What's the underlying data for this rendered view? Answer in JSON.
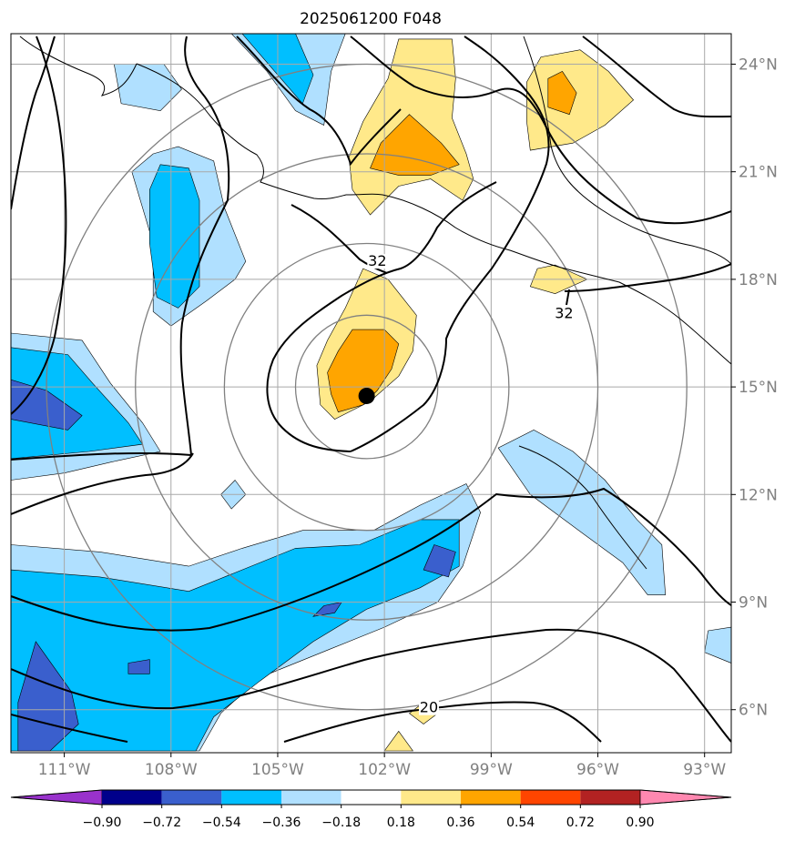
{
  "chart_data": {
    "type": "heatmap",
    "title": "2025061200 F048",
    "projection": "map",
    "xlim": [
      -112.5,
      -92.25
    ],
    "ylim": [
      4.8,
      24.85
    ],
    "x_ticks": [
      {
        "value": -111,
        "label": "111°W"
      },
      {
        "value": -108,
        "label": "108°W"
      },
      {
        "value": -105,
        "label": "105°W"
      },
      {
        "value": -102,
        "label": "102°W"
      },
      {
        "value": -99,
        "label": "99°W"
      },
      {
        "value": -96,
        "label": "96°W"
      },
      {
        "value": -93,
        "label": "93°W"
      }
    ],
    "y_ticks": [
      {
        "value": 6,
        "label": "6°N"
      },
      {
        "value": 9,
        "label": "9°N"
      },
      {
        "value": 12,
        "label": "12°N"
      },
      {
        "value": 15,
        "label": "15°N"
      },
      {
        "value": 18,
        "label": "18°N"
      },
      {
        "value": 21,
        "label": "21°N"
      },
      {
        "value": 24,
        "label": "24°N"
      }
    ],
    "grid": true,
    "colorbar": {
      "placement": "bottom",
      "levels": [
        "−0.90",
        "−0.72",
        "−0.54",
        "−0.36",
        "−0.18",
        "0.18",
        "0.36",
        "0.54",
        "0.72",
        "0.90"
      ],
      "colors": [
        "#9932cc",
        "#00008b",
        "#3a5fcd",
        "#00bfff",
        "#b0e0ff",
        "#ffffff",
        "#ffe98a",
        "#ffa500",
        "#ff4500",
        "#b22222",
        "#ff88b0"
      ]
    },
    "center_marker": {
      "lon": -102.5,
      "lat": 14.75
    },
    "contour_labels": [
      {
        "text": "32",
        "lon": -102.2,
        "lat": 18.4
      },
      {
        "text": "32",
        "lon": -96.95,
        "lat": 16.95
      },
      {
        "text": "20",
        "lon": -100.75,
        "lat": 5.95
      }
    ],
    "range_rings": {
      "center_lon": -102.5,
      "center_lat": 15.0,
      "radii_deg": [
        2,
        4,
        6.5,
        9
      ]
    },
    "filled_regions": [
      {
        "level": 0.36,
        "color": "#ffe98a",
        "points": [
          [
            -102.6,
            18.3
          ],
          [
            -101.9,
            18.0
          ],
          [
            -101.1,
            17.0
          ],
          [
            -101.2,
            16.0
          ],
          [
            -101.6,
            15.3
          ],
          [
            -102.4,
            14.6
          ],
          [
            -103.4,
            14.1
          ],
          [
            -103.8,
            14.5
          ],
          [
            -103.9,
            15.6
          ],
          [
            -103.6,
            16.3
          ],
          [
            -103.1,
            17.2
          ]
        ]
      },
      {
        "level": 0.54,
        "color": "#ffa500",
        "points": [
          [
            -102.9,
            16.6
          ],
          [
            -102.0,
            16.6
          ],
          [
            -101.6,
            16.2
          ],
          [
            -101.8,
            15.5
          ],
          [
            -102.2,
            14.9
          ],
          [
            -102.6,
            14.5
          ],
          [
            -103.3,
            14.3
          ],
          [
            -103.5,
            14.8
          ],
          [
            -103.6,
            15.4
          ],
          [
            -103.3,
            16.0
          ]
        ]
      },
      {
        "level": 0.36,
        "color": "#ffe98a",
        "points": [
          [
            -100.1,
            24.7
          ],
          [
            -101.6,
            24.7
          ],
          [
            -101.9,
            23.6
          ],
          [
            -102.6,
            22.4
          ],
          [
            -103.0,
            21.4
          ],
          [
            -102.9,
            20.5
          ],
          [
            -102.4,
            19.8
          ],
          [
            -101.6,
            20.6
          ],
          [
            -100.7,
            20.8
          ],
          [
            -99.8,
            20.2
          ],
          [
            -99.5,
            20.8
          ],
          [
            -99.7,
            21.5
          ],
          [
            -100.1,
            22.5
          ],
          [
            -100.0,
            23.6
          ]
        ]
      },
      {
        "level": 0.54,
        "color": "#ffa500",
        "points": [
          [
            -101.3,
            22.6
          ],
          [
            -100.4,
            21.8
          ],
          [
            -99.9,
            21.2
          ],
          [
            -100.7,
            20.9
          ],
          [
            -101.6,
            20.9
          ],
          [
            -102.4,
            21.1
          ],
          [
            -102.1,
            21.8
          ]
        ]
      },
      {
        "level": 0.36,
        "color": "#ffe98a",
        "points": [
          [
            -96.5,
            24.4
          ],
          [
            -95.7,
            23.8
          ],
          [
            -95.0,
            23.0
          ],
          [
            -95.8,
            22.3
          ],
          [
            -96.7,
            21.8
          ],
          [
            -97.9,
            21.6
          ],
          [
            -98.0,
            22.4
          ],
          [
            -98.0,
            23.5
          ],
          [
            -97.6,
            24.2
          ]
        ]
      },
      {
        "level": 0.54,
        "color": "#ffa500",
        "points": [
          [
            -97.0,
            23.8
          ],
          [
            -96.6,
            23.2
          ],
          [
            -96.8,
            22.6
          ],
          [
            -97.4,
            22.8
          ],
          [
            -97.4,
            23.6
          ]
        ]
      },
      {
        "level": 0.36,
        "color": "#ffe98a",
        "points": [
          [
            -97.2,
            18.4
          ],
          [
            -96.3,
            18.0
          ],
          [
            -97.2,
            17.6
          ],
          [
            -97.9,
            17.8
          ],
          [
            -97.7,
            18.3
          ]
        ]
      },
      {
        "level": 0.36,
        "color": "#ffe98a",
        "points": [
          [
            -100.9,
            6.2
          ],
          [
            -100.5,
            5.9
          ],
          [
            -100.9,
            5.6
          ],
          [
            -101.3,
            5.9
          ]
        ]
      },
      {
        "level": 0.36,
        "color": "#ffe98a",
        "points": [
          [
            -101.6,
            5.4
          ],
          [
            -101.2,
            4.85
          ],
          [
            -102.0,
            4.85
          ]
        ]
      },
      {
        "level": -0.36,
        "color": "#b0e0ff",
        "points": [
          [
            -112.5,
            10.6
          ],
          [
            -110.0,
            10.4
          ],
          [
            -107.5,
            10.0
          ],
          [
            -106.0,
            10.5
          ],
          [
            -104.3,
            11.0
          ],
          [
            -102.3,
            11.0
          ],
          [
            -101.0,
            11.7
          ],
          [
            -99.7,
            12.3
          ],
          [
            -99.3,
            11.5
          ],
          [
            -99.8,
            10.0
          ],
          [
            -100.5,
            9.0
          ],
          [
            -102.0,
            8.3
          ],
          [
            -103.5,
            7.7
          ],
          [
            -105.5,
            6.9
          ],
          [
            -106.6,
            5.9
          ],
          [
            -107.2,
            4.85
          ],
          [
            -112.5,
            4.85
          ]
        ]
      },
      {
        "level": -0.54,
        "color": "#00bfff",
        "points": [
          [
            -112.5,
            9.9
          ],
          [
            -110.0,
            9.7
          ],
          [
            -107.5,
            9.3
          ],
          [
            -106.0,
            9.9
          ],
          [
            -104.5,
            10.5
          ],
          [
            -102.7,
            10.6
          ],
          [
            -101.0,
            11.3
          ],
          [
            -99.9,
            11.3
          ],
          [
            -99.9,
            10.0
          ],
          [
            -101.0,
            9.4
          ],
          [
            -102.5,
            8.8
          ],
          [
            -104.0,
            7.9
          ],
          [
            -105.5,
            6.8
          ],
          [
            -106.8,
            5.8
          ],
          [
            -107.3,
            4.85
          ],
          [
            -112.5,
            4.85
          ]
        ]
      },
      {
        "level": -0.72,
        "color": "#3a5fcd",
        "points": [
          [
            -111.8,
            7.9
          ],
          [
            -110.8,
            6.5
          ],
          [
            -110.6,
            5.6
          ],
          [
            -111.4,
            4.85
          ],
          [
            -112.3,
            4.85
          ],
          [
            -112.3,
            6.2
          ]
        ]
      },
      {
        "level": -0.72,
        "color": "#3a5fcd",
        "points": [
          [
            -109.2,
            7.3
          ],
          [
            -108.6,
            7.4
          ],
          [
            -108.6,
            7.0
          ],
          [
            -109.2,
            7.0
          ]
        ]
      },
      {
        "level": -0.72,
        "color": "#3a5fcd",
        "points": [
          [
            -103.7,
            8.9
          ],
          [
            -103.2,
            9.0
          ],
          [
            -103.4,
            8.7
          ],
          [
            -104.0,
            8.6
          ]
        ]
      },
      {
        "level": -0.72,
        "color": "#3a5fcd",
        "points": [
          [
            -100.6,
            10.6
          ],
          [
            -100.0,
            10.4
          ],
          [
            -100.2,
            9.7
          ],
          [
            -100.9,
            9.9
          ]
        ]
      },
      {
        "level": -0.36,
        "color": "#b0e0ff",
        "points": [
          [
            -112.5,
            16.5
          ],
          [
            -110.5,
            16.3
          ],
          [
            -109.7,
            15.1
          ],
          [
            -108.8,
            14.0
          ],
          [
            -108.3,
            13.2
          ],
          [
            -109.7,
            12.9
          ],
          [
            -111.0,
            12.6
          ],
          [
            -112.5,
            12.4
          ]
        ]
      },
      {
        "level": -0.54,
        "color": "#00bfff",
        "points": [
          [
            -112.5,
            16.1
          ],
          [
            -110.9,
            15.9
          ],
          [
            -110.2,
            15.1
          ],
          [
            -109.2,
            14.0
          ],
          [
            -108.8,
            13.4
          ],
          [
            -110.3,
            13.2
          ],
          [
            -112.5,
            13.0
          ]
        ]
      },
      {
        "level": -0.72,
        "color": "#3a5fcd",
        "points": [
          [
            -112.5,
            15.2
          ],
          [
            -111.5,
            14.9
          ],
          [
            -110.5,
            14.2
          ],
          [
            -110.9,
            13.8
          ],
          [
            -112.5,
            14.1
          ]
        ]
      },
      {
        "level": -0.36,
        "color": "#b0e0ff",
        "points": [
          [
            -108.5,
            21.5
          ],
          [
            -107.8,
            21.7
          ],
          [
            -106.8,
            21.3
          ],
          [
            -106.5,
            20.0
          ],
          [
            -105.9,
            18.5
          ],
          [
            -106.2,
            18.0
          ],
          [
            -107.0,
            17.4
          ],
          [
            -108.0,
            16.7
          ],
          [
            -108.5,
            17.1
          ],
          [
            -108.5,
            19.0
          ],
          [
            -109.1,
            21.0
          ]
        ]
      },
      {
        "level": -0.54,
        "color": "#00bfff",
        "points": [
          [
            -108.3,
            21.2
          ],
          [
            -107.5,
            21.1
          ],
          [
            -107.2,
            20.2
          ],
          [
            -107.2,
            18.8
          ],
          [
            -107.2,
            17.8
          ],
          [
            -107.8,
            17.2
          ],
          [
            -108.4,
            17.5
          ],
          [
            -108.6,
            19.0
          ],
          [
            -108.6,
            20.5
          ]
        ]
      },
      {
        "level": -0.36,
        "color": "#b0e0ff",
        "points": [
          [
            -105.5,
            24.85
          ],
          [
            -103.1,
            24.85
          ],
          [
            -103.5,
            23.8
          ],
          [
            -103.7,
            22.3
          ],
          [
            -104.5,
            22.7
          ],
          [
            -105.3,
            23.8
          ],
          [
            -106.3,
            24.85
          ]
        ]
      },
      {
        "level": -0.54,
        "color": "#00bfff",
        "points": [
          [
            -105.6,
            24.85
          ],
          [
            -104.5,
            24.85
          ],
          [
            -104.0,
            23.7
          ],
          [
            -104.3,
            22.9
          ],
          [
            -105.0,
            23.7
          ],
          [
            -106.0,
            24.85
          ]
        ]
      },
      {
        "level": -0.36,
        "color": "#b0e0ff",
        "points": [
          [
            -109.6,
            24.0
          ],
          [
            -108.2,
            24.0
          ],
          [
            -107.7,
            23.3
          ],
          [
            -108.3,
            22.7
          ],
          [
            -109.4,
            22.9
          ]
        ]
      },
      {
        "level": -0.36,
        "color": "#b0e0ff",
        "points": [
          [
            -106.2,
            12.4
          ],
          [
            -105.9,
            12.0
          ],
          [
            -106.3,
            11.6
          ],
          [
            -106.6,
            12.0
          ]
        ]
      },
      {
        "level": -0.36,
        "color": "#b0e0ff",
        "points": [
          [
            -97.8,
            13.8
          ],
          [
            -96.7,
            13.2
          ],
          [
            -95.8,
            12.4
          ],
          [
            -94.9,
            11.3
          ],
          [
            -94.2,
            10.6
          ],
          [
            -94.1,
            9.2
          ],
          [
            -94.6,
            9.2
          ],
          [
            -95.3,
            10.1
          ],
          [
            -96.4,
            10.9
          ],
          [
            -97.9,
            12.0
          ],
          [
            -98.8,
            13.3
          ]
        ]
      },
      {
        "level": -0.36,
        "color": "#b0e0ff",
        "points": [
          [
            -92.25,
            8.3
          ],
          [
            -92.9,
            8.2
          ],
          [
            -93.0,
            7.6
          ],
          [
            -92.25,
            7.3
          ]
        ]
      }
    ]
  }
}
